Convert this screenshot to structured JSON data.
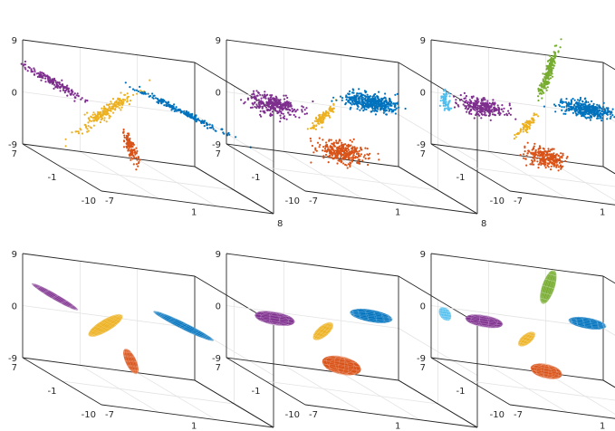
{
  "figure": {
    "layout": "2x3",
    "colors": {
      "purple": "#7E2F8E",
      "yellow": "#EDB120",
      "orange": "#D95319",
      "blue": "#0072BD",
      "lightblue": "#4DBEEE",
      "green": "#77AC30",
      "axis": "#262626",
      "grid": "#e3e3e3"
    }
  },
  "chart_data": [
    {
      "type": "scatter",
      "projection": "3d",
      "grid": true,
      "xlim": [
        -7,
        8
      ],
      "ylim": [
        -10,
        7
      ],
      "zlim": [
        -9,
        9
      ],
      "x_ticks": [
        "-7",
        "1",
        "8"
      ],
      "y_ticks": [
        "-10",
        "-1",
        "7"
      ],
      "z_ticks": [
        "-9",
        "0",
        "9"
      ],
      "series": [
        {
          "color": "purple",
          "center": [
            -5,
            5,
            3
          ],
          "spread": [
            3.2,
            0.3,
            0.6
          ],
          "axis": [
            1,
            -1,
            -0.9
          ],
          "n": 160
        },
        {
          "color": "yellow",
          "center": [
            -2,
            1.5,
            0.5
          ],
          "spread": [
            5.5,
            0.5,
            0.6
          ],
          "axis": [
            0.3,
            -0.5,
            1
          ],
          "n": 200
        },
        {
          "color": "orange",
          "center": [
            -1,
            -1.5,
            -4
          ],
          "spread": [
            2.8,
            0.4,
            0.4
          ],
          "axis": [
            0,
            0.6,
            1
          ],
          "n": 120
        },
        {
          "color": "blue",
          "center": [
            5,
            2,
            2
          ],
          "spread": [
            4.5,
            0.4,
            0.4
          ],
          "axis": [
            -0.8,
            1,
            0.5
          ],
          "n": 200
        }
      ]
    },
    {
      "type": "scatter",
      "projection": "3d",
      "grid": true,
      "xlim": [
        -7,
        8
      ],
      "ylim": [
        -10,
        7
      ],
      "zlim": [
        -9,
        9
      ],
      "x_ticks": [
        "-7",
        "1",
        "8"
      ],
      "y_ticks": [
        "-10",
        "-1",
        "7"
      ],
      "z_ticks": [
        "-9",
        "0",
        "9"
      ],
      "series": [
        {
          "color": "purple",
          "center": [
            -4,
            4,
            0
          ],
          "spread": [
            1.5,
            1.5,
            2
          ],
          "axis": [
            0,
            0,
            1
          ],
          "n": 320
        },
        {
          "color": "yellow",
          "center": [
            -1,
            1,
            0
          ],
          "spread": [
            3,
            0.35,
            0.35
          ],
          "axis": [
            0.2,
            -0.4,
            1
          ],
          "n": 100
        },
        {
          "color": "orange",
          "center": [
            -1,
            -3,
            -4
          ],
          "spread": [
            1.8,
            1.8,
            1.9
          ],
          "axis": [
            0,
            0,
            1
          ],
          "n": 320
        },
        {
          "color": "blue",
          "center": [
            4,
            3,
            3
          ],
          "spread": [
            2.2,
            1.6,
            1.4
          ],
          "axis": [
            1,
            0,
            0
          ],
          "n": 420
        }
      ]
    },
    {
      "type": "scatter",
      "projection": "3d",
      "grid": true,
      "xlim": [
        -7,
        8
      ],
      "ylim": [
        -10,
        7
      ],
      "zlim": [
        -9,
        9
      ],
      "x_ticks": [
        "-7",
        "1",
        "8"
      ],
      "y_ticks": [
        "-10",
        "-1",
        "7"
      ],
      "z_ticks": [
        "-9",
        "0",
        "9"
      ],
      "series": [
        {
          "color": "lightblue",
          "center": [
            -7,
            4,
            0
          ],
          "spread": [
            2,
            0.35,
            0.35
          ],
          "axis": [
            0,
            0.3,
            1
          ],
          "n": 70
        },
        {
          "color": "purple",
          "center": [
            -4,
            3,
            0
          ],
          "spread": [
            1.3,
            1.3,
            2
          ],
          "axis": [
            0,
            0,
            1
          ],
          "n": 280
        },
        {
          "color": "yellow",
          "center": [
            -1.5,
            0,
            -1
          ],
          "spread": [
            2.4,
            0.3,
            0.3
          ],
          "axis": [
            0.2,
            -0.4,
            1
          ],
          "n": 80
        },
        {
          "color": "orange",
          "center": [
            -1,
            -3,
            -5
          ],
          "spread": [
            1.5,
            1.5,
            1.6
          ],
          "axis": [
            0,
            0,
            1
          ],
          "n": 260
        },
        {
          "color": "green",
          "center": [
            2,
            4,
            7
          ],
          "spread": [
            4,
            0.3,
            0.3
          ],
          "axis": [
            0.3,
            0.3,
            1
          ],
          "n": 220
        },
        {
          "color": "blue",
          "center": [
            5,
            3,
            2
          ],
          "spread": [
            2,
            1.4,
            1.2
          ],
          "axis": [
            1,
            0,
            0
          ],
          "n": 380
        }
      ]
    },
    {
      "type": "ellipsoid",
      "projection": "3d",
      "grid": true,
      "xlim": [
        -7,
        8
      ],
      "ylim": [
        -10,
        7
      ],
      "zlim": [
        -9,
        9
      ],
      "x_ticks": [
        "-7",
        "1",
        "8"
      ],
      "y_ticks": [
        "-10",
        "-1",
        "7"
      ],
      "z_ticks": [
        "-9",
        "0",
        "9"
      ],
      "series": [
        {
          "color": "purple",
          "center": [
            -5,
            5,
            3
          ],
          "radii": [
            2.4,
            0.45,
            0.45
          ],
          "axis": [
            1,
            -1,
            -0.9
          ]
        },
        {
          "color": "yellow",
          "center": [
            -2,
            1.5,
            0.5
          ],
          "radii": [
            3.2,
            0.6,
            0.6
          ],
          "axis": [
            0.3,
            -0.5,
            1
          ]
        },
        {
          "color": "orange",
          "center": [
            -1,
            -1.5,
            -4
          ],
          "radii": [
            2,
            0.5,
            0.5
          ],
          "axis": [
            0,
            0.6,
            1
          ]
        },
        {
          "color": "blue",
          "center": [
            5,
            2,
            2
          ],
          "radii": [
            3,
            0.55,
            0.55
          ],
          "axis": [
            -0.8,
            1,
            0.5
          ]
        }
      ]
    },
    {
      "type": "ellipsoid",
      "projection": "3d",
      "grid": true,
      "xlim": [
        -7,
        8
      ],
      "ylim": [
        -10,
        7
      ],
      "zlim": [
        -9,
        9
      ],
      "x_ticks": [
        "-7",
        "1",
        "8"
      ],
      "y_ticks": [
        "-10",
        "-1",
        "7"
      ],
      "z_ticks": [
        "-9",
        "0",
        "9"
      ],
      "series": [
        {
          "color": "purple",
          "center": [
            -4,
            4,
            0
          ],
          "radii": [
            1.1,
            1.1,
            1.7
          ],
          "axis": [
            0,
            0,
            1
          ]
        },
        {
          "color": "yellow",
          "center": [
            -1,
            1,
            0
          ],
          "radii": [
            2.2,
            0.5,
            0.5
          ],
          "axis": [
            0.2,
            -0.4,
            1
          ]
        },
        {
          "color": "orange",
          "center": [
            -1,
            -3,
            -4
          ],
          "radii": [
            1.5,
            1.5,
            1.6
          ],
          "axis": [
            0,
            0,
            1
          ]
        },
        {
          "color": "blue",
          "center": [
            4,
            3,
            3
          ],
          "radii": [
            1.8,
            1.2,
            1.0
          ],
          "axis": [
            1,
            0,
            0
          ]
        }
      ]
    },
    {
      "type": "ellipsoid",
      "projection": "3d",
      "grid": true,
      "xlim": [
        -7,
        8
      ],
      "ylim": [
        -10,
        7
      ],
      "zlim": [
        -9,
        9
      ],
      "x_ticks": [
        "-7",
        "1",
        "8"
      ],
      "y_ticks": [
        "-10",
        "-1",
        "7"
      ],
      "z_ticks": [
        "-9",
        "0",
        "9"
      ],
      "series": [
        {
          "color": "lightblue",
          "center": [
            -7,
            4,
            0
          ],
          "radii": [
            1.1,
            0.5,
            0.5
          ],
          "axis": [
            0,
            0.3,
            1
          ]
        },
        {
          "color": "purple",
          "center": [
            -4,
            3,
            0
          ],
          "radii": [
            1.0,
            1.0,
            1.6
          ],
          "axis": [
            0,
            0,
            1
          ]
        },
        {
          "color": "yellow",
          "center": [
            -1.5,
            0,
            -1
          ],
          "radii": [
            1.8,
            0.45,
            0.45
          ],
          "axis": [
            0.2,
            -0.4,
            1
          ]
        },
        {
          "color": "orange",
          "center": [
            -1,
            -3,
            -5
          ],
          "radii": [
            1.2,
            1.2,
            1.3
          ],
          "axis": [
            0,
            0,
            1
          ]
        },
        {
          "color": "green",
          "center": [
            2,
            4,
            7
          ],
          "radii": [
            3,
            0.5,
            0.5
          ],
          "axis": [
            0.3,
            0.3,
            1
          ]
        },
        {
          "color": "blue",
          "center": [
            5,
            3,
            2
          ],
          "radii": [
            1.6,
            1.0,
            0.9
          ],
          "axis": [
            1,
            0,
            0
          ]
        }
      ]
    }
  ]
}
